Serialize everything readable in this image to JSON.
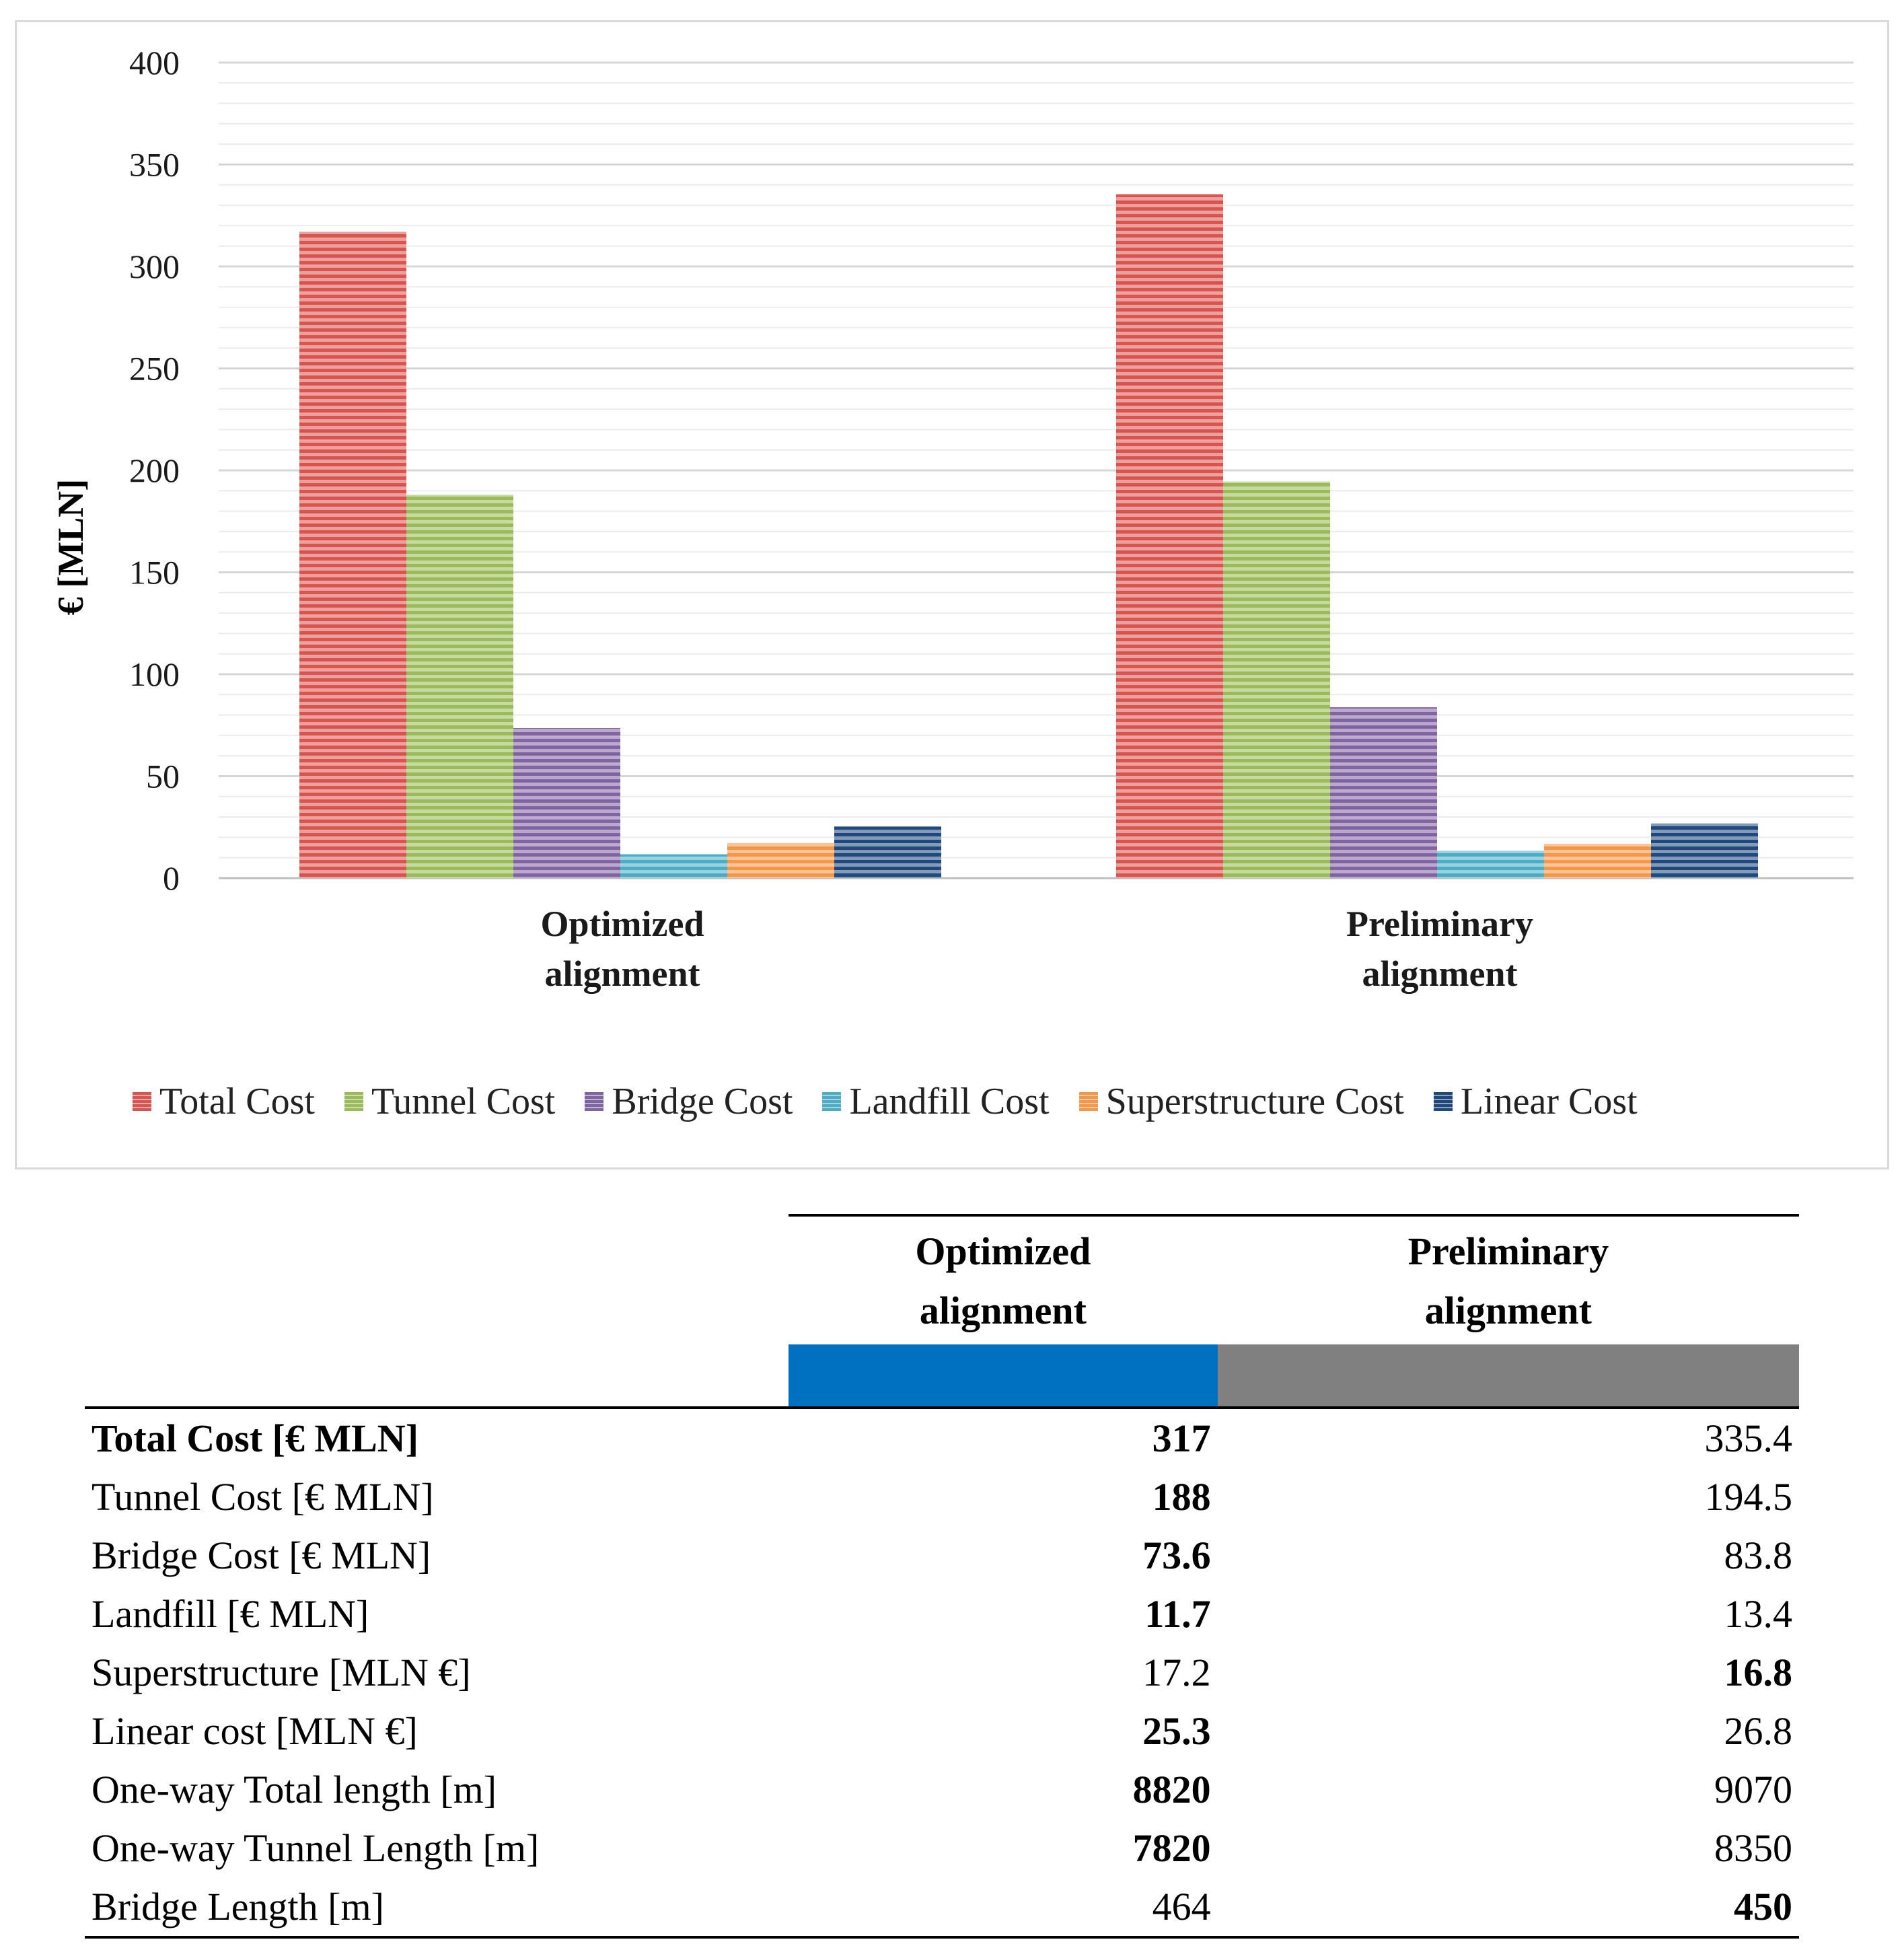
{
  "chart_data": {
    "type": "bar",
    "title": "",
    "xlabel": "",
    "ylabel": "€ [MLN]",
    "ylim": [
      0,
      400
    ],
    "yticks": [
      0,
      50,
      100,
      150,
      200,
      250,
      300,
      350,
      400
    ],
    "categories": [
      "Optimized\nalignment",
      "Preliminary\nalignment"
    ],
    "category_lines": [
      [
        "Optimized",
        "alignment"
      ],
      [
        "Preliminary",
        "alignment"
      ]
    ],
    "series": [
      {
        "name": "Total Cost",
        "color": "#d9534f",
        "values": [
          317,
          335.4
        ]
      },
      {
        "name": "Tunnel Cost",
        "color": "#9bbb59",
        "values": [
          188,
          194.5
        ]
      },
      {
        "name": "Bridge Cost",
        "color": "#8064a2",
        "values": [
          73.6,
          83.8
        ]
      },
      {
        "name": "Landfill Cost",
        "color": "#4bacc6",
        "values": [
          11.7,
          13.4
        ]
      },
      {
        "name": "Superstructure Cost",
        "color": "#f79646",
        "values": [
          17.2,
          16.8
        ]
      },
      {
        "name": "Linear Cost",
        "color": "#1f497d",
        "values": [
          25.3,
          26.8
        ]
      }
    ],
    "grid": true,
    "legend": "bottom"
  },
  "table": {
    "headers": {
      "optimized": [
        "Optimized",
        "alignment"
      ],
      "preliminary": [
        "Preliminary",
        "alignment"
      ]
    },
    "colors": {
      "optimized": "#0070c0",
      "preliminary": "#808080"
    },
    "rows": [
      {
        "label": "Total Cost [€ MLN]",
        "label_bold": true,
        "optimized": "317",
        "opt_bold": true,
        "preliminary": "335.4",
        "pre_bold": false
      },
      {
        "label": "Tunnel Cost [€ MLN]",
        "label_bold": false,
        "optimized": "188",
        "opt_bold": true,
        "preliminary": "194.5",
        "pre_bold": false
      },
      {
        "label": "Bridge Cost [€ MLN]",
        "label_bold": false,
        "optimized": "73.6",
        "opt_bold": true,
        "preliminary": "83.8",
        "pre_bold": false
      },
      {
        "label": "Landfill [€ MLN]",
        "label_bold": false,
        "optimized": "11.7",
        "opt_bold": true,
        "preliminary": "13.4",
        "pre_bold": false
      },
      {
        "label": "Superstructure  [MLN €]",
        "label_bold": false,
        "optimized": "17.2",
        "opt_bold": false,
        "preliminary": "16.8",
        "pre_bold": true
      },
      {
        "label": "Linear cost [MLN €]",
        "label_bold": false,
        "optimized": "25.3",
        "opt_bold": true,
        "preliminary": "26.8",
        "pre_bold": false
      },
      {
        "label": "One-way Total length [m]",
        "label_bold": false,
        "optimized": "8820",
        "opt_bold": true,
        "preliminary": "9070",
        "pre_bold": false
      },
      {
        "label": "One-way Tunnel Length [m]",
        "label_bold": false,
        "optimized": "7820",
        "opt_bold": true,
        "preliminary": "8350",
        "pre_bold": false
      },
      {
        "label": "Bridge Length [m]",
        "label_bold": false,
        "optimized": "464",
        "opt_bold": false,
        "preliminary": "450",
        "pre_bold": true
      }
    ]
  }
}
